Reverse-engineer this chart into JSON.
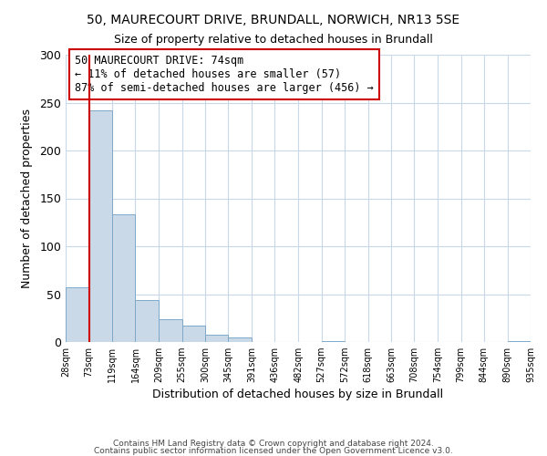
{
  "title": "50, MAURECOURT DRIVE, BRUNDALL, NORWICH, NR13 5SE",
  "subtitle": "Size of property relative to detached houses in Brundall",
  "xlabel": "Distribution of detached houses by size in Brundall",
  "ylabel": "Number of detached properties",
  "bar_edges": [
    28,
    73,
    119,
    164,
    209,
    255,
    300,
    345,
    391,
    436,
    482,
    527,
    572,
    618,
    663,
    708,
    754,
    799,
    844,
    890,
    935
  ],
  "bar_heights": [
    57,
    242,
    133,
    44,
    24,
    17,
    8,
    5,
    0,
    0,
    0,
    1,
    0,
    0,
    0,
    0,
    0,
    0,
    0,
    1
  ],
  "bar_color": "#c9d9e8",
  "bar_edge_color": "#7fa8c9",
  "property_size": 74,
  "annotation_title": "50 MAURECOURT DRIVE: 74sqm",
  "annotation_line1": "← 11% of detached houses are smaller (57)",
  "annotation_line2": "87% of semi-detached houses are larger (456) →",
  "annotation_box_color": "#ffffff",
  "annotation_box_edge_color": "#cc0000",
  "vline_color": "#cc0000",
  "ylim": [
    0,
    300
  ],
  "yticks": [
    0,
    50,
    100,
    150,
    200,
    250,
    300
  ],
  "footer1": "Contains HM Land Registry data © Crown copyright and database right 2024.",
  "footer2": "Contains public sector information licensed under the Open Government Licence v3.0.",
  "background_color": "#ffffff",
  "grid_color": "#c8d8e8"
}
